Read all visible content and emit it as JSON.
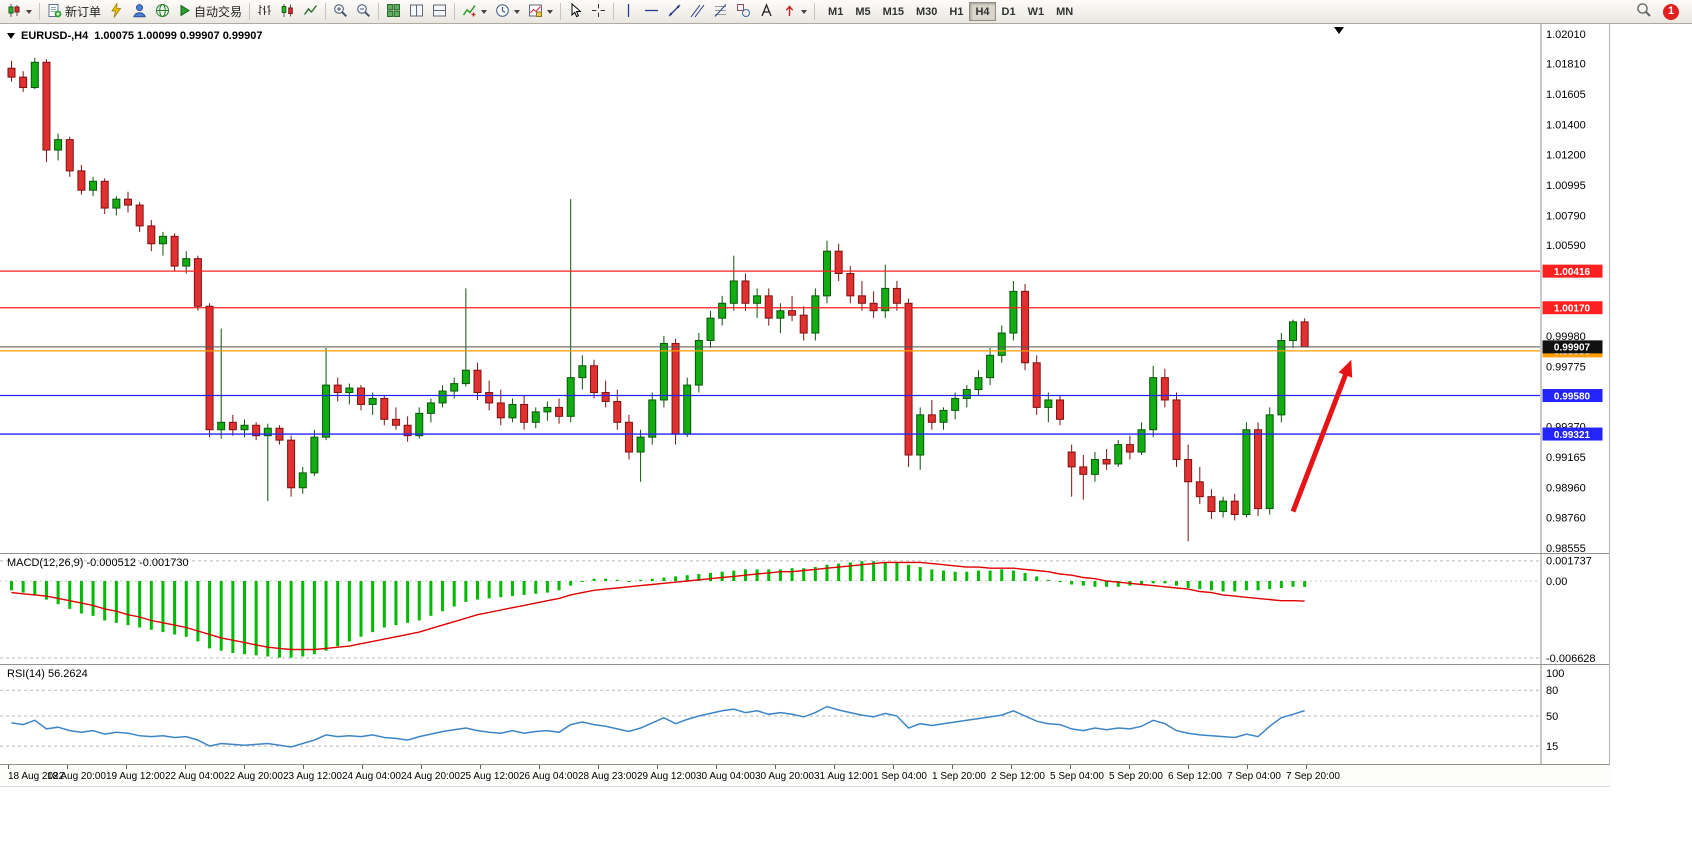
{
  "toolbar": {
    "new_order_label": "新订单",
    "auto_trading_label": "自动交易",
    "timeframes": [
      "M1",
      "M5",
      "M15",
      "M30",
      "H1",
      "H4",
      "D1",
      "W1",
      "MN"
    ],
    "active_timeframe": "H4",
    "notification_count": "1"
  },
  "chart": {
    "symbol_period": "EURUSD-,H4",
    "quote_ohlc": "1.00075 1.00099 0.99907 0.99907",
    "price_axis_ticks": [
      "1.02010",
      "1.01810",
      "1.01605",
      "1.01400",
      "1.01200",
      "1.00995",
      "1.00790",
      "1.00590",
      "0.99980",
      "0.99775",
      "0.99370",
      "0.99165",
      "0.98960",
      "0.98760",
      "0.98555"
    ],
    "levels": [
      {
        "price": 1.00416,
        "label": "1.00416",
        "color": "#ff2020"
      },
      {
        "price": 1.0017,
        "label": "1.00170",
        "color": "#ff2020"
      },
      {
        "price": 0.9988,
        "label": "0.99880",
        "color": "#ff9c00"
      },
      {
        "price": 0.9958,
        "label": "0.99580",
        "color": "#2424ff"
      },
      {
        "price": 0.99321,
        "label": "0.99321",
        "color": "#2424ff"
      }
    ],
    "current_price": {
      "value": 0.99907,
      "label": "0.99907",
      "color": "#111111"
    }
  },
  "chart_data": {
    "type": "candlestick",
    "symbol": "EURUSD",
    "timeframe": "H4",
    "price_range": [
      0.98555,
      1.0201
    ],
    "time_labels": [
      "18 Aug 2022",
      "18 Aug 20:00",
      "19 Aug 12:00",
      "22 Aug 04:00",
      "22 Aug 20:00",
      "23 Aug 12:00",
      "24 Aug 04:00",
      "24 Aug 20:00",
      "25 Aug 12:00",
      "26 Aug 04:00",
      "28 Aug 23:00",
      "29 Aug 12:00",
      "30 Aug 04:00",
      "30 Aug 20:00",
      "31 Aug 12:00",
      "1 Sep 04:00",
      "1 Sep 20:00",
      "2 Sep 12:00",
      "5 Sep 04:00",
      "5 Sep 20:00",
      "6 Sep 12:00",
      "7 Sep 04:00",
      "7 Sep 20:00"
    ],
    "candles": [
      [
        1.0178,
        1.0183,
        1.0169,
        1.0172
      ],
      [
        1.0172,
        1.0176,
        1.0162,
        1.0165
      ],
      [
        1.0165,
        1.0185,
        1.0164,
        1.0182
      ],
      [
        1.0182,
        1.0184,
        1.0115,
        1.0123
      ],
      [
        1.0123,
        1.0134,
        1.0116,
        1.013
      ],
      [
        1.013,
        1.0132,
        1.0105,
        1.0109
      ],
      [
        1.0109,
        1.0113,
        1.0093,
        1.0096
      ],
      [
        1.0096,
        1.0105,
        1.0092,
        1.0102
      ],
      [
        1.0102,
        1.0104,
        1.008,
        1.0084
      ],
      [
        1.0084,
        1.0092,
        1.0079,
        1.009
      ],
      [
        1.009,
        1.0095,
        1.0081,
        1.0086
      ],
      [
        1.0086,
        1.0088,
        1.0068,
        1.0072
      ],
      [
        1.0072,
        1.0076,
        1.0055,
        1.006
      ],
      [
        1.006,
        1.0068,
        1.0052,
        1.0065
      ],
      [
        1.0065,
        1.0067,
        1.0042,
        1.0045
      ],
      [
        1.0045,
        1.0055,
        1.004,
        1.005
      ],
      [
        1.005,
        1.0052,
        1.0015,
        1.0018
      ],
      [
        1.0018,
        1.002,
        0.993,
        0.9935
      ],
      [
        0.9935,
        1.0003,
        0.9929,
        0.994
      ],
      [
        0.994,
        0.9945,
        0.9931,
        0.9935
      ],
      [
        0.9935,
        0.9942,
        0.993,
        0.9938
      ],
      [
        0.9938,
        0.994,
        0.9928,
        0.9931
      ],
      [
        0.9931,
        0.9939,
        0.9887,
        0.9936
      ],
      [
        0.9936,
        0.9938,
        0.9925,
        0.9928
      ],
      [
        0.9928,
        0.9931,
        0.989,
        0.9896
      ],
      [
        0.9896,
        0.991,
        0.9892,
        0.9906
      ],
      [
        0.9906,
        0.9935,
        0.9904,
        0.993
      ],
      [
        0.993,
        0.999,
        0.9928,
        0.9965
      ],
      [
        0.9965,
        0.997,
        0.9954,
        0.996
      ],
      [
        0.996,
        0.9966,
        0.9952,
        0.9963
      ],
      [
        0.9963,
        0.9965,
        0.9948,
        0.9952
      ],
      [
        0.9952,
        0.996,
        0.9945,
        0.9956
      ],
      [
        0.9956,
        0.9958,
        0.9938,
        0.9942
      ],
      [
        0.9942,
        0.995,
        0.9935,
        0.9938
      ],
      [
        0.9938,
        0.9944,
        0.9927,
        0.9931
      ],
      [
        0.9931,
        0.995,
        0.9929,
        0.9946
      ],
      [
        0.9946,
        0.9956,
        0.994,
        0.9953
      ],
      [
        0.9953,
        0.9965,
        0.995,
        0.9961
      ],
      [
        0.9961,
        0.997,
        0.9956,
        0.9966
      ],
      [
        0.9966,
        1.003,
        0.9964,
        0.9975
      ],
      [
        0.9975,
        0.998,
        0.9955,
        0.996
      ],
      [
        0.996,
        0.9968,
        0.9948,
        0.9953
      ],
      [
        0.9953,
        0.9962,
        0.9938,
        0.9943
      ],
      [
        0.9943,
        0.9956,
        0.994,
        0.9952
      ],
      [
        0.9952,
        0.9958,
        0.9935,
        0.994
      ],
      [
        0.994,
        0.995,
        0.9936,
        0.9947
      ],
      [
        0.9947,
        0.9954,
        0.9941,
        0.995
      ],
      [
        0.995,
        0.9956,
        0.9939,
        0.9944
      ],
      [
        0.9944,
        1.009,
        0.994,
        0.997
      ],
      [
        0.997,
        0.9985,
        0.9962,
        0.9978
      ],
      [
        0.9978,
        0.9982,
        0.9956,
        0.996
      ],
      [
        0.996,
        0.9968,
        0.995,
        0.9954
      ],
      [
        0.9954,
        0.9962,
        0.9935,
        0.994
      ],
      [
        0.994,
        0.9945,
        0.9915,
        0.992
      ],
      [
        0.992,
        0.9935,
        0.99,
        0.993
      ],
      [
        0.993,
        0.996,
        0.9925,
        0.9955
      ],
      [
        0.9955,
        0.9998,
        0.995,
        0.9993
      ],
      [
        0.9993,
        0.9996,
        0.9925,
        0.9932
      ],
      [
        0.9932,
        0.997,
        0.993,
        0.9965
      ],
      [
        0.9965,
        1.0,
        0.996,
        0.9995
      ],
      [
        0.9995,
        1.0015,
        0.999,
        1.001
      ],
      [
        1.001,
        1.0025,
        1.0005,
        1.002
      ],
      [
        1.002,
        1.0052,
        1.0015,
        1.0035
      ],
      [
        1.0035,
        1.004,
        1.0015,
        1.002
      ],
      [
        1.002,
        1.003,
        1.001,
        1.0025
      ],
      [
        1.0025,
        1.003,
        1.0005,
        1.001
      ],
      [
        1.001,
        1.002,
        1.0,
        1.0015
      ],
      [
        1.0015,
        1.0025,
        1.0008,
        1.0012
      ],
      [
        1.0012,
        1.0018,
        0.9995,
        1.0
      ],
      [
        1.0,
        1.003,
        0.9995,
        1.0025
      ],
      [
        1.0025,
        1.0062,
        1.002,
        1.0055
      ],
      [
        1.0055,
        1.006,
        1.0035,
        1.004
      ],
      [
        1.004,
        1.0045,
        1.002,
        1.0025
      ],
      [
        1.0025,
        1.0035,
        1.0015,
        1.002
      ],
      [
        1.002,
        1.0028,
        1.001,
        1.0015
      ],
      [
        1.0015,
        1.0046,
        1.001,
        1.003
      ],
      [
        1.003,
        1.0035,
        1.0015,
        1.002
      ],
      [
        1.002,
        1.0023,
        0.991,
        0.9918
      ],
      [
        0.9918,
        0.995,
        0.9908,
        0.9945
      ],
      [
        0.9945,
        0.9955,
        0.9935,
        0.994
      ],
      [
        0.994,
        0.995,
        0.9935,
        0.9948
      ],
      [
        0.9948,
        0.996,
        0.9942,
        0.9956
      ],
      [
        0.9956,
        0.9965,
        0.995,
        0.9962
      ],
      [
        0.9962,
        0.9975,
        0.9958,
        0.997
      ],
      [
        0.997,
        0.999,
        0.9965,
        0.9985
      ],
      [
        0.9985,
        1.0005,
        0.998,
        1.0
      ],
      [
        1.0,
        1.0035,
        0.9995,
        1.0028
      ],
      [
        1.0028,
        1.0033,
        0.9975,
        0.998
      ],
      [
        0.998,
        0.9985,
        0.9945,
        0.995
      ],
      [
        0.995,
        0.996,
        0.994,
        0.9955
      ],
      [
        0.9955,
        0.9958,
        0.9938,
        0.9942
      ],
      [
        0.992,
        0.9925,
        0.989,
        0.991
      ],
      [
        0.991,
        0.9918,
        0.9888,
        0.9905
      ],
      [
        0.9905,
        0.992,
        0.99,
        0.9915
      ],
      [
        0.9915,
        0.9922,
        0.9908,
        0.9912
      ],
      [
        0.9912,
        0.9928,
        0.991,
        0.9925
      ],
      [
        0.9925,
        0.9931,
        0.9915,
        0.992
      ],
      [
        0.992,
        0.994,
        0.9918,
        0.9935
      ],
      [
        0.9935,
        0.9978,
        0.993,
        0.997
      ],
      [
        0.997,
        0.9976,
        0.995,
        0.9955
      ],
      [
        0.9955,
        0.996,
        0.991,
        0.9915
      ],
      [
        0.9915,
        0.9925,
        0.986,
        0.99
      ],
      [
        0.99,
        0.991,
        0.9885,
        0.989
      ],
      [
        0.989,
        0.9895,
        0.9875,
        0.988
      ],
      [
        0.988,
        0.989,
        0.9876,
        0.9887
      ],
      [
        0.9887,
        0.9892,
        0.9874,
        0.9878
      ],
      [
        0.9878,
        0.994,
        0.9876,
        0.9935
      ],
      [
        0.9935,
        0.994,
        0.9877,
        0.9882
      ],
      [
        0.9882,
        0.995,
        0.9878,
        0.9945
      ],
      [
        0.9945,
        1.0,
        0.994,
        0.9995
      ],
      [
        0.9995,
        1.0009,
        0.999,
        1.00075
      ],
      [
        1.00075,
        1.00099,
        0.99907,
        0.99907
      ]
    ],
    "macd": {
      "label": "MACD(12,26,9) -0.000512 -0.001730",
      "range": [
        -0.006628,
        0.001737
      ],
      "axis_labels": [
        {
          "text": "0.001737",
          "value": 0.001737
        },
        {
          "text": "0.00",
          "value": 0
        },
        {
          "text": "-0.006628",
          "value": -0.006628
        }
      ],
      "histogram": [
        -0.0008,
        -0.001,
        -0.0012,
        -0.0016,
        -0.002,
        -0.0024,
        -0.0028,
        -0.003,
        -0.0034,
        -0.0036,
        -0.0038,
        -0.004,
        -0.0042,
        -0.0044,
        -0.0046,
        -0.0048,
        -0.0052,
        -0.0058,
        -0.006,
        -0.0062,
        -0.0063,
        -0.0064,
        -0.0065,
        -0.0066,
        -0.0066,
        -0.0065,
        -0.0063,
        -0.006,
        -0.0056,
        -0.0052,
        -0.0048,
        -0.0044,
        -0.004,
        -0.0038,
        -0.0036,
        -0.0034,
        -0.003,
        -0.0026,
        -0.0022,
        -0.0018,
        -0.0016,
        -0.0015,
        -0.0014,
        -0.0013,
        -0.0012,
        -0.0011,
        -0.001,
        -0.0008,
        -0.0004,
        0.0,
        0.0002,
        0.0002,
        0.0001,
        0.0,
        0.0001,
        0.0002,
        0.0003,
        0.0004,
        0.0005,
        0.0006,
        0.0007,
        0.0008,
        0.0009,
        0.001,
        0.001,
        0.001,
        0.001,
        0.0011,
        0.0011,
        0.0012,
        0.0014,
        0.0015,
        0.0016,
        0.0017,
        0.0017,
        0.0016,
        0.0016,
        0.0014,
        0.0012,
        0.001,
        0.0009,
        0.0008,
        0.0008,
        0.0009,
        0.0009,
        0.001,
        0.0009,
        0.0007,
        0.0004,
        0.0001,
        -0.0001,
        -0.0003,
        -0.0004,
        -0.0005,
        -0.0005,
        -0.0005,
        -0.0004,
        -0.0003,
        -0.0002,
        -0.0002,
        -0.0004,
        -0.0006,
        -0.0007,
        -0.0008,
        -0.0009,
        -0.0009,
        -0.0008,
        -0.0008,
        -0.0007,
        -0.0006,
        -0.0005,
        -0.000512
      ],
      "signal": [
        -0.001,
        -0.0011,
        -0.0012,
        -0.0013,
        -0.0015,
        -0.0017,
        -0.0019,
        -0.0021,
        -0.0024,
        -0.0026,
        -0.0029,
        -0.0031,
        -0.0034,
        -0.0036,
        -0.0038,
        -0.004,
        -0.0043,
        -0.0046,
        -0.0049,
        -0.0051,
        -0.0053,
        -0.0055,
        -0.0057,
        -0.0058,
        -0.0059,
        -0.0059,
        -0.0059,
        -0.0058,
        -0.0057,
        -0.0056,
        -0.0054,
        -0.0052,
        -0.005,
        -0.0048,
        -0.0046,
        -0.0044,
        -0.0041,
        -0.0038,
        -0.0035,
        -0.0032,
        -0.0029,
        -0.0027,
        -0.0025,
        -0.0023,
        -0.0021,
        -0.0019,
        -0.0017,
        -0.0015,
        -0.0012,
        -0.001,
        -0.0008,
        -0.0007,
        -0.0006,
        -0.0005,
        -0.0004,
        -0.0003,
        -0.0002,
        -0.0001,
        0.0,
        0.0001,
        0.0002,
        0.0003,
        0.0004,
        0.0005,
        0.0006,
        0.0007,
        0.0008,
        0.0008,
        0.0009,
        0.001,
        0.0011,
        0.0012,
        0.0013,
        0.0014,
        0.0015,
        0.0016,
        0.0016,
        0.0016,
        0.0016,
        0.0015,
        0.0014,
        0.0013,
        0.0012,
        0.0012,
        0.0011,
        0.0011,
        0.0011,
        0.001,
        0.0009,
        0.0008,
        0.0006,
        0.0005,
        0.0003,
        0.0002,
        0.0,
        -0.0001,
        -0.0002,
        -0.0003,
        -0.0004,
        -0.0005,
        -0.0006,
        -0.0007,
        -0.0009,
        -0.001,
        -0.0012,
        -0.0013,
        -0.0014,
        -0.0015,
        -0.0016,
        -0.0017,
        -0.0017,
        -0.00173
      ]
    },
    "rsi": {
      "label": "RSI(14) 56.2624",
      "levels": [
        80,
        50,
        15
      ],
      "axis_labels": [
        {
          "text": "100",
          "value": 100
        },
        {
          "text": "80",
          "value": 80
        },
        {
          "text": "50",
          "value": 50
        },
        {
          "text": "15",
          "value": 15
        }
      ],
      "values": [
        42,
        40,
        45,
        35,
        37,
        33,
        31,
        33,
        29,
        31,
        30,
        27,
        26,
        27,
        25,
        26,
        22,
        15,
        18,
        17,
        16,
        17,
        18,
        16,
        14,
        18,
        22,
        28,
        26,
        27,
        26,
        28,
        25,
        24,
        22,
        26,
        29,
        32,
        34,
        36,
        33,
        31,
        30,
        33,
        30,
        32,
        33,
        31,
        40,
        43,
        40,
        38,
        35,
        32,
        36,
        42,
        48,
        41,
        46,
        50,
        53,
        56,
        58,
        54,
        56,
        52,
        54,
        52,
        49,
        54,
        61,
        57,
        54,
        51,
        49,
        53,
        50,
        36,
        41,
        39,
        41,
        43,
        45,
        47,
        49,
        51,
        56,
        50,
        44,
        41,
        40,
        35,
        33,
        36,
        34,
        36,
        35,
        38,
        45,
        41,
        33,
        30,
        28,
        27,
        26,
        25,
        29,
        26,
        38,
        48,
        52,
        56.26
      ]
    }
  },
  "annotation": {
    "type": "arrow",
    "color": "#e61414",
    "from_index": 110,
    "from_price": 0.988,
    "to_index": 115,
    "to_price": 0.9982
  }
}
